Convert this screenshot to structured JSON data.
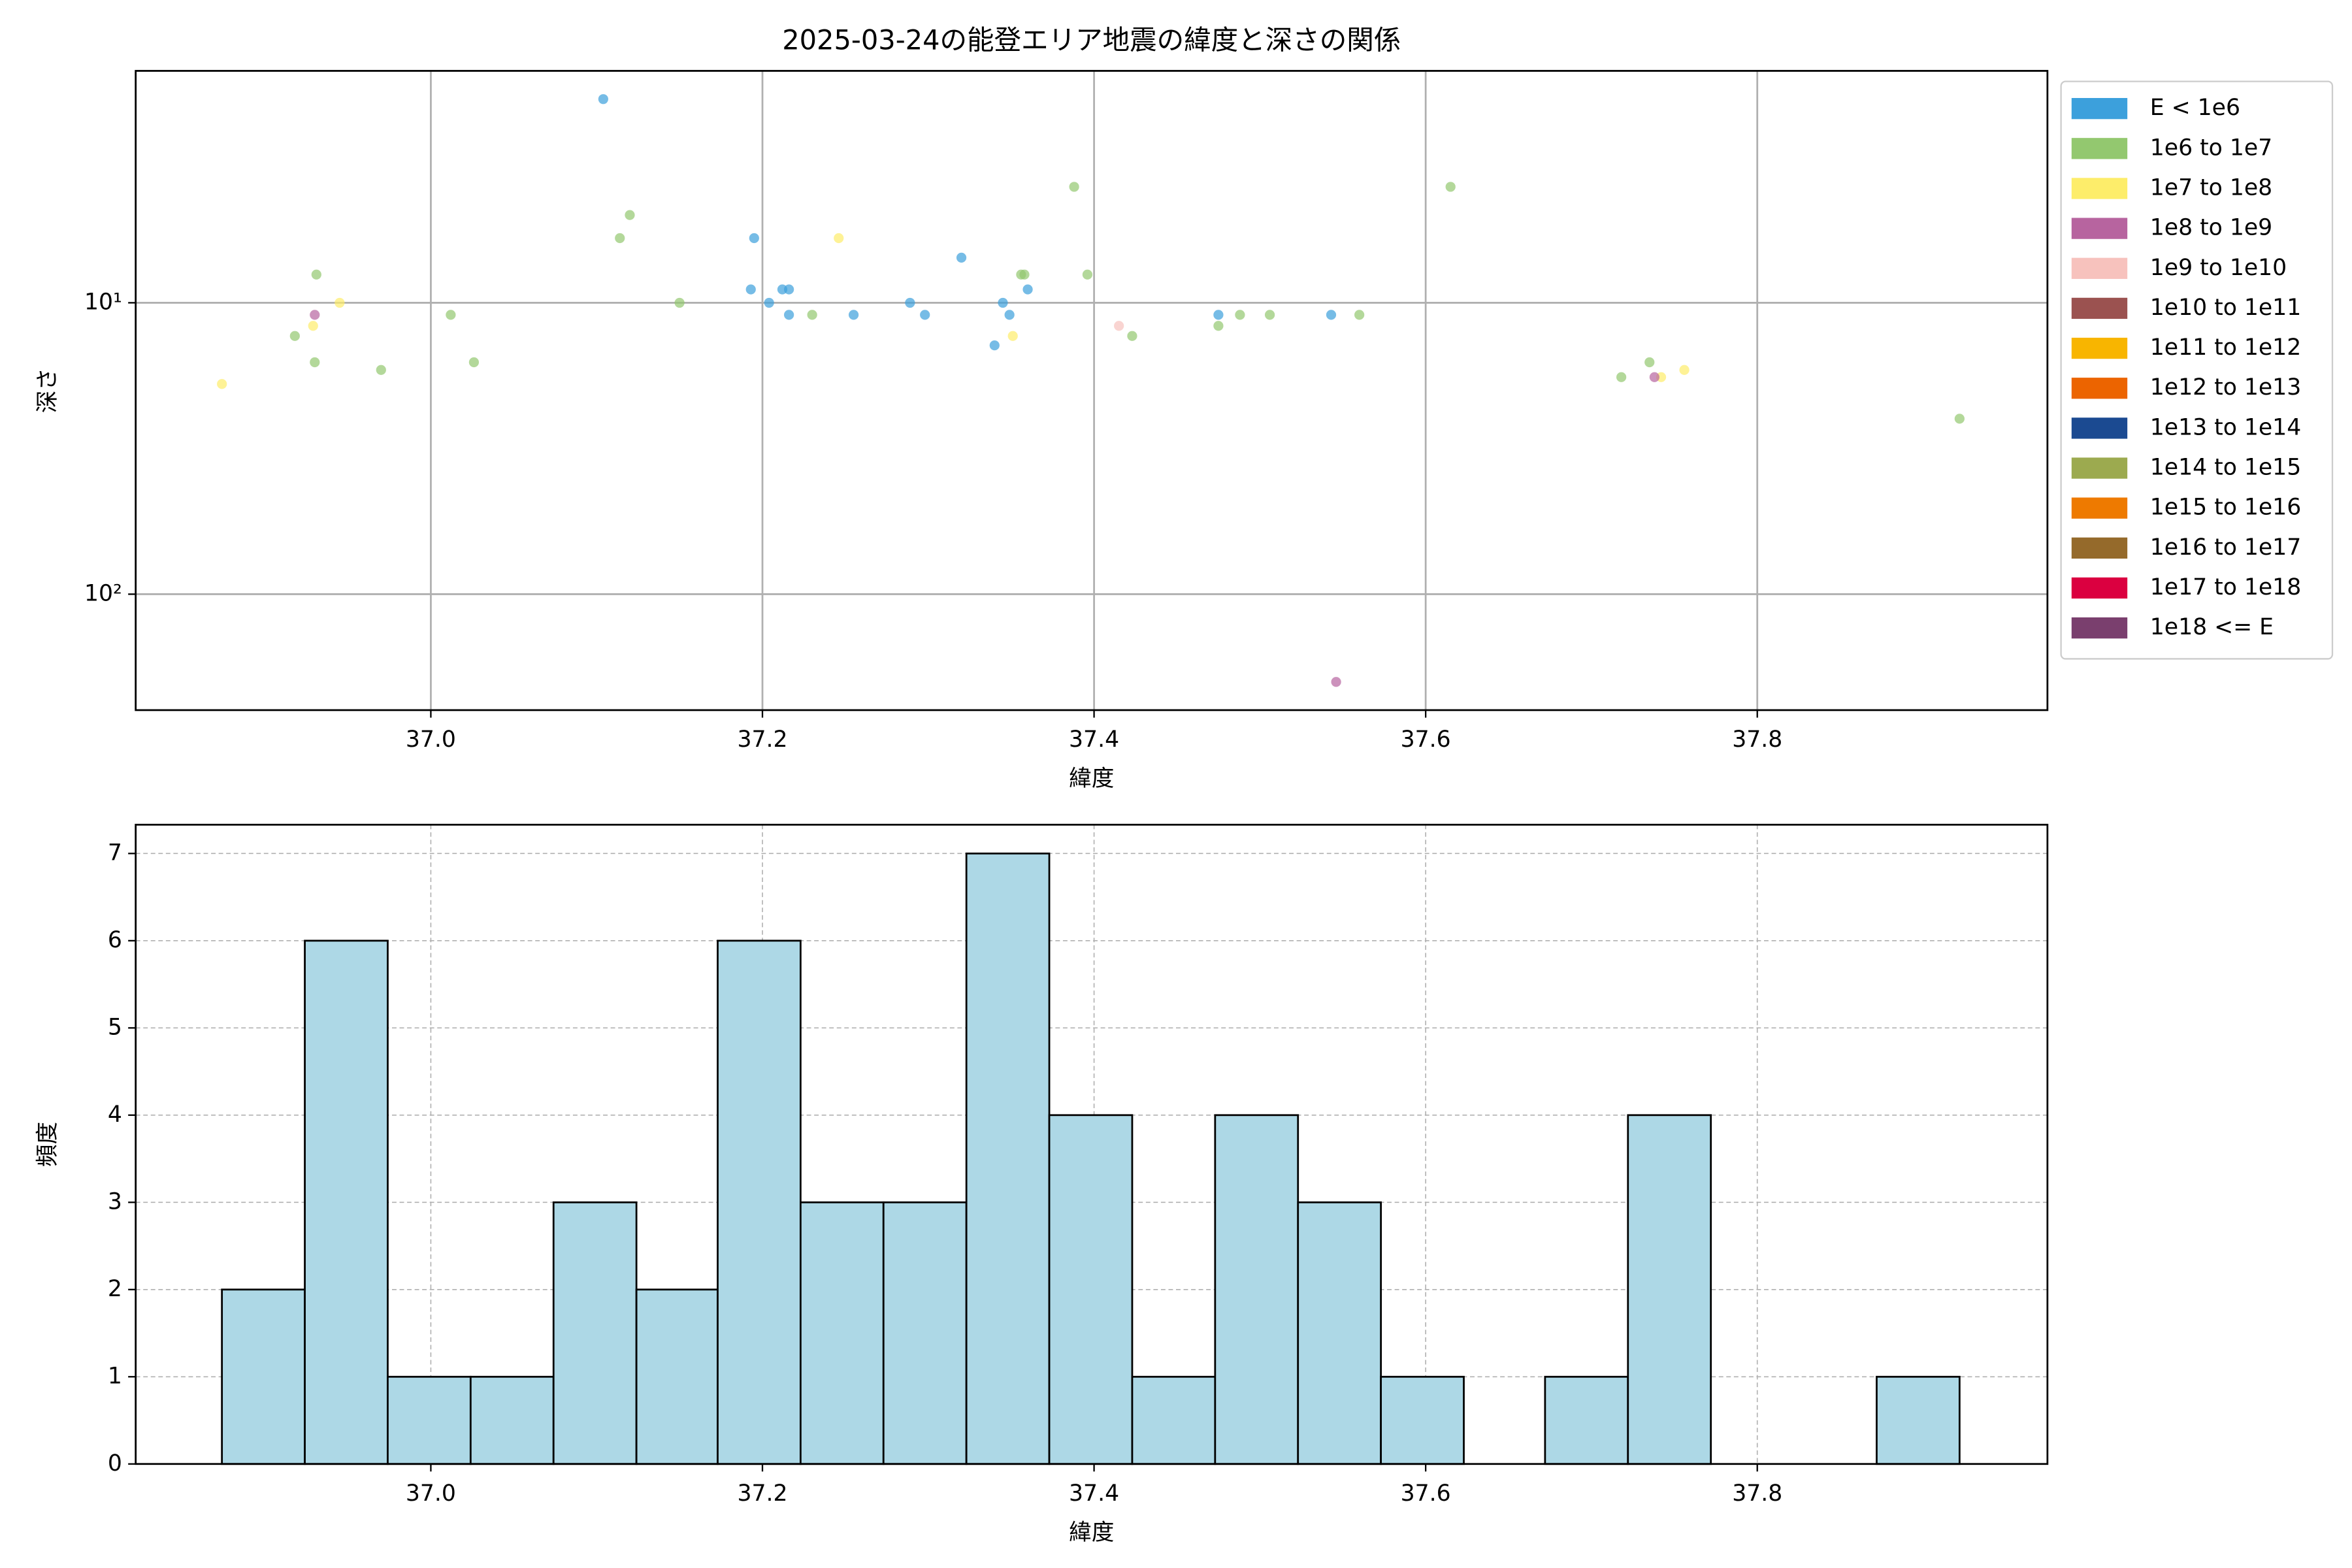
{
  "chart_data": [
    {
      "type": "scatter",
      "title": "2025-03-24の能登エリア地震の緯度と深さの関係",
      "xlabel": "緯度",
      "ylabel": "深さ",
      "xlim": [
        36.822,
        37.975
      ],
      "xticks": [
        {
          "value": 37.0,
          "label": "37.0"
        },
        {
          "value": 37.2,
          "label": "37.2"
        },
        {
          "value": 37.4,
          "label": "37.4"
        },
        {
          "value": 37.6,
          "label": "37.6"
        },
        {
          "value": 37.8,
          "label": "37.8"
        }
      ],
      "ylim": [
        1.6,
        250
      ],
      "yscale": "log",
      "invert_y": true,
      "yticks": [
        {
          "value": 10,
          "label": "10¹"
        },
        {
          "value": 100,
          "label": "10²"
        }
      ],
      "grid": true,
      "grid_style": "solid",
      "legend": "outside-upper-right",
      "alpha": 0.7,
      "series": [
        {
          "name": "E < 1e6",
          "color": "#3ca0dc",
          "x": [
            37.104,
            37.195,
            37.193,
            37.204,
            37.212,
            37.216,
            37.216,
            37.255,
            37.289,
            37.298,
            37.32,
            37.34,
            37.345,
            37.349,
            37.36,
            37.475,
            37.543
          ],
          "values": [
            2.0,
            6,
            9,
            10,
            9,
            9,
            11,
            11,
            10,
            11,
            7,
            14,
            10,
            11,
            9,
            11,
            11
          ]
        },
        {
          "name": "1e6 to 1e7",
          "color": "#93c86f",
          "x": [
            36.918,
            36.931,
            36.93,
            36.97,
            37.012,
            37.026,
            37.114,
            37.12,
            37.15,
            37.23,
            37.356,
            37.358,
            37.388,
            37.396,
            37.423,
            37.475,
            37.488,
            37.506,
            37.56,
            37.615,
            37.718,
            37.735,
            37.922
          ],
          "values": [
            13,
            8,
            16,
            17,
            11,
            16,
            6,
            5,
            10,
            11,
            8,
            8,
            4,
            8,
            13,
            12,
            11,
            11,
            11,
            4,
            18,
            16,
            25
          ]
        },
        {
          "name": "1e7 to 1e8",
          "color": "#fded6a",
          "x": [
            36.874,
            36.929,
            36.945,
            37.246,
            37.351,
            37.742,
            37.756
          ],
          "values": [
            19,
            12,
            10,
            6,
            13,
            18,
            17
          ]
        },
        {
          "name": "1e8 to 1e9",
          "color": "#b7649f",
          "x": [
            36.93,
            37.738,
            37.546
          ],
          "values": [
            11,
            18,
            200
          ]
        },
        {
          "name": "1e9 to 1e10",
          "color": "#f7c2bd",
          "x": [
            37.415
          ],
          "values": [
            12
          ]
        },
        {
          "name": "1e10 to 1e11",
          "color": "#9b5250",
          "x": [],
          "values": []
        },
        {
          "name": "1e11 to 1e12",
          "color": "#f8b500",
          "x": [],
          "values": []
        },
        {
          "name": "1e12 to 1e13",
          "color": "#ec6400",
          "x": [],
          "values": []
        },
        {
          "name": "1e13 to 1e14",
          "color": "#1b4a91",
          "x": [],
          "values": []
        },
        {
          "name": "1e14 to 1e15",
          "color": "#9caa4f",
          "x": [],
          "values": []
        },
        {
          "name": "1e15 to 1e16",
          "color": "#ee7a00",
          "x": [],
          "values": []
        },
        {
          "name": "1e16 to 1e17",
          "color": "#956a2b",
          "x": [],
          "values": []
        },
        {
          "name": "1e17 to 1e18",
          "color": "#db0040",
          "x": [],
          "values": []
        },
        {
          "name": "1e18 <= E",
          "color": "#7a3f6e",
          "x": [],
          "values": []
        }
      ]
    },
    {
      "type": "histogram",
      "xlabel": "緯度",
      "ylabel": "頻度",
      "color": "#add8e6",
      "edgecolor": "#000000",
      "bins": [
        36.874,
        36.924,
        36.974,
        37.024,
        37.074,
        37.124,
        37.173,
        37.223,
        37.273,
        37.323,
        37.373,
        37.423,
        37.473,
        37.523,
        37.573,
        37.623,
        37.672,
        37.722,
        37.772,
        37.822,
        37.872,
        37.922
      ],
      "values": [
        2,
        6,
        1,
        1,
        3,
        2,
        6,
        3,
        3,
        7,
        4,
        1,
        4,
        3,
        1,
        0,
        1,
        4,
        0,
        0,
        1
      ],
      "xlim": [
        36.822,
        37.975
      ],
      "xticks": [
        {
          "value": 37.0,
          "label": "37.0"
        },
        {
          "value": 37.2,
          "label": "37.2"
        },
        {
          "value": 37.4,
          "label": "37.4"
        },
        {
          "value": 37.6,
          "label": "37.6"
        },
        {
          "value": 37.8,
          "label": "37.8"
        }
      ],
      "ylim": [
        0,
        7.33
      ],
      "yticks": [
        0,
        1,
        2,
        3,
        4,
        5,
        6,
        7
      ],
      "grid": true,
      "grid_style": "dashed"
    }
  ]
}
